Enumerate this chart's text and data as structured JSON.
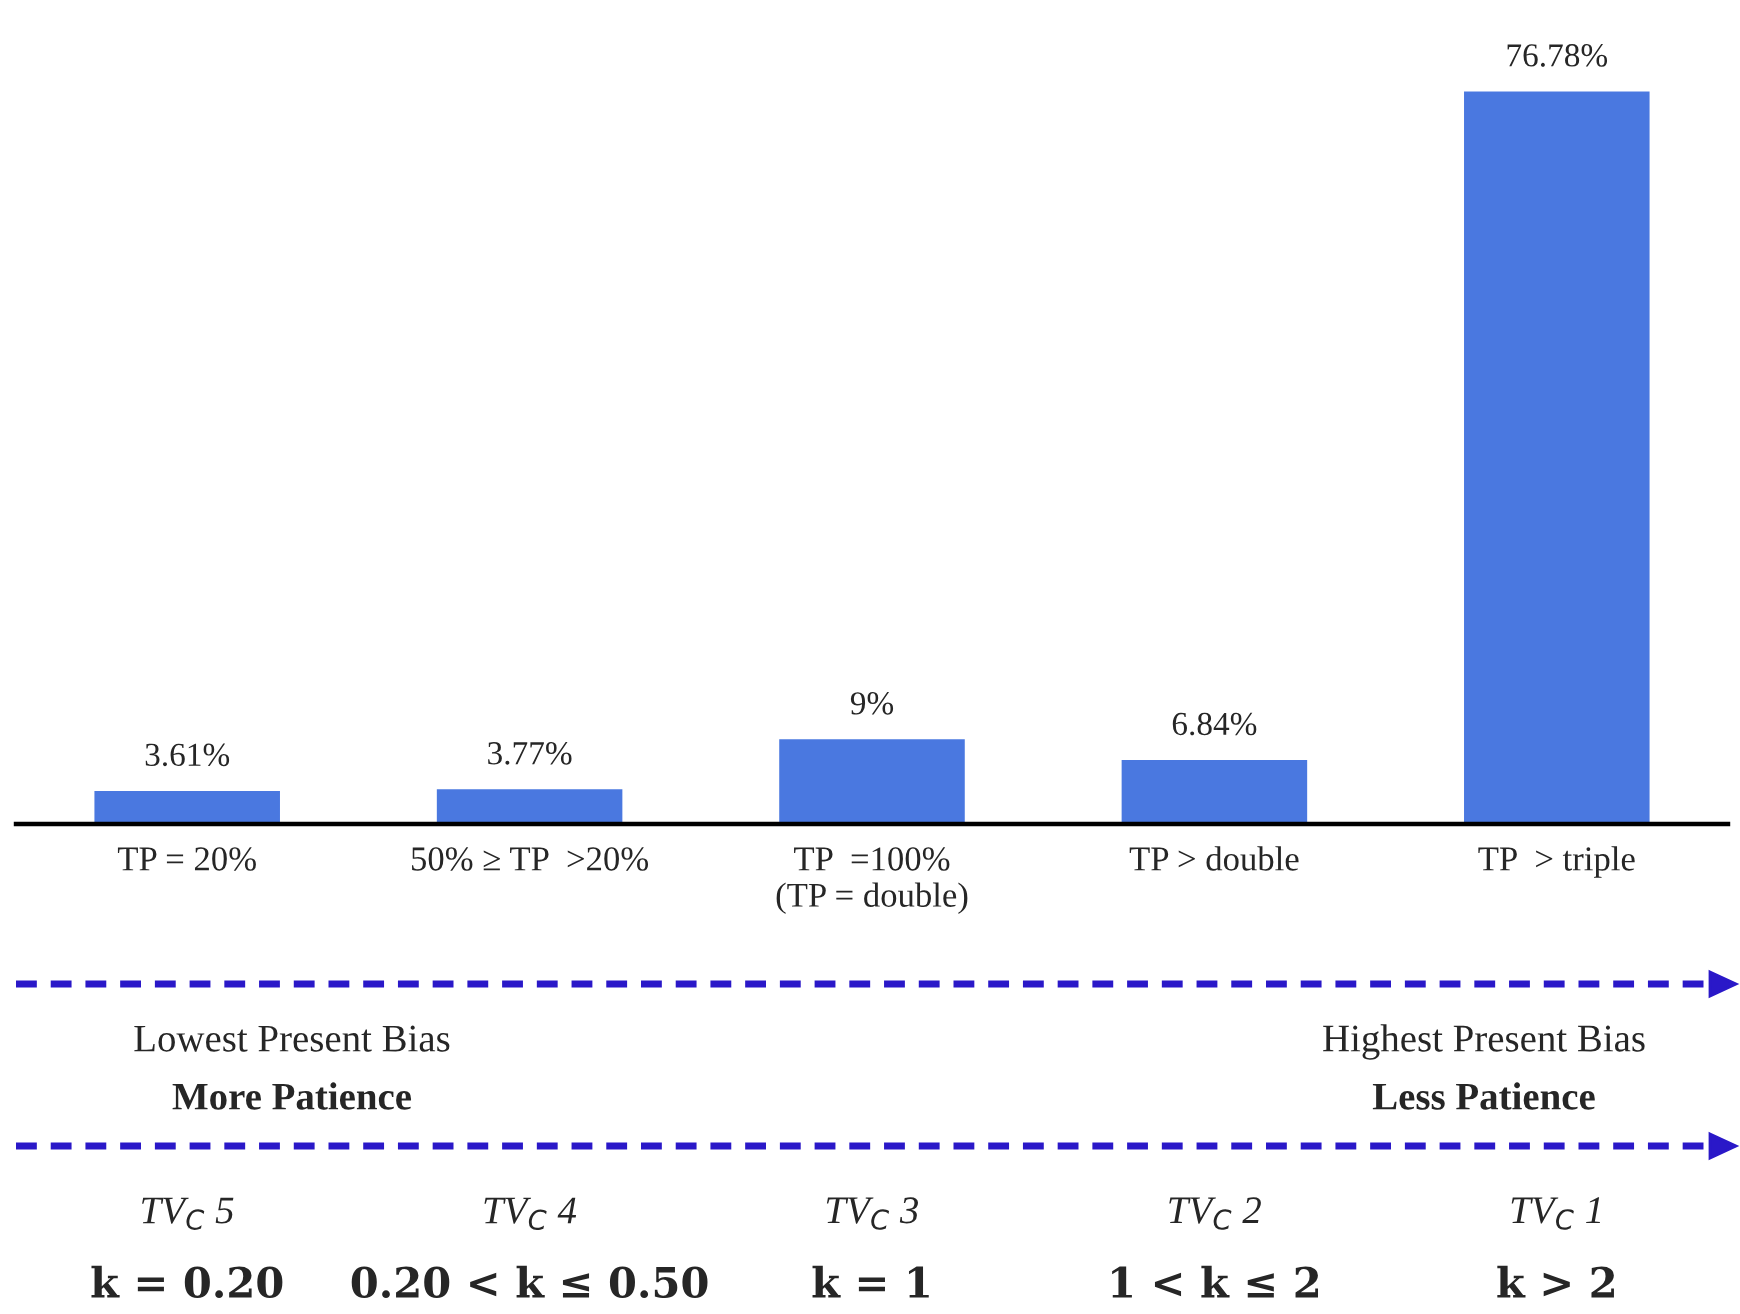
{
  "chart_data": {
    "type": "bar",
    "tick_labels": "x",
    "categories": [
      "TP = 20%",
      "50% ≥ TP  >20%",
      "TP  =100%\n(TP = double)",
      "TP > double",
      "TP  > triple"
    ],
    "values": [
      3.61,
      3.77,
      9,
      6.84,
      76.78
    ],
    "value_labels": [
      "3.61%",
      "3.77%",
      "9%",
      "6.84%",
      "76.78%"
    ],
    "color": "#4a78e0",
    "grid": false,
    "legend": false,
    "annotations": [
      "Lowest Present Bias",
      "More Patience",
      "Highest Present Bias",
      "Less Patience",
      "TV$_{C}$ 5",
      "TV$_{C}$ 4",
      "TV$_{C}$ 3",
      "TV$_{C}$ 2",
      "TV$_{C}$ 1",
      "k = 0.20",
      "0.20 < k ≤ 0.50",
      "k = 1",
      "1 < k ≤ 2",
      "k > 2"
    ]
  }
}
